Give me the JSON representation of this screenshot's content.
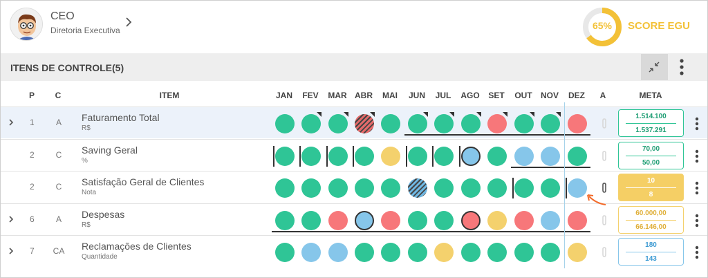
{
  "user": {
    "name": "CEO",
    "department": "Diretoria Executiva"
  },
  "score": {
    "percent": "65%",
    "label": "SCORE EGU",
    "value": 0.65,
    "color": "#f3c137"
  },
  "section": {
    "title": "ITENS DE CONTROLE(5)"
  },
  "columns": {
    "p": "P",
    "c": "C",
    "item": "ITEM",
    "a": "A",
    "meta": "META",
    "months": [
      "JAN",
      "FEV",
      "MAR",
      "ABR",
      "MAI",
      "JUN",
      "JUL",
      "AGO",
      "SET",
      "OUT",
      "NOV",
      "DEZ"
    ]
  },
  "status_colors": {
    "green": "#2fc596",
    "red": "#f7777a",
    "yellow": "#f4d16d",
    "blue": "#86c6ea"
  },
  "rows": [
    {
      "expandable": true,
      "p": "1",
      "c": "A",
      "item": "Faturamento Total",
      "unit": "R$",
      "statuses": [
        "green",
        "green",
        "green",
        "hatch-red",
        "green",
        "green",
        "green",
        "green",
        "red",
        "green",
        "green",
        "red"
      ],
      "meta_top": "1.514.100",
      "meta_bottom": "1.537.291",
      "meta_style": "green"
    },
    {
      "expandable": false,
      "p": "2",
      "c": "C",
      "item": "Saving Geral",
      "unit": "%",
      "statuses": [
        "green",
        "green",
        "green",
        "green",
        "yellow",
        "green",
        "green",
        "blue",
        "green",
        "blue",
        "blue",
        "green"
      ],
      "meta_top": "70,00",
      "meta_bottom": "50,00",
      "meta_style": "green"
    },
    {
      "expandable": false,
      "p": "2",
      "c": "C",
      "item": "Satisfação Geral de Clientes",
      "unit": "Nota",
      "statuses": [
        "green",
        "green",
        "green",
        "green",
        "green",
        "hatch-blue",
        "green",
        "green",
        "green",
        "green",
        "green",
        "blue"
      ],
      "meta_top": "10",
      "meta_bottom": "8",
      "meta_style": "yellow"
    },
    {
      "expandable": true,
      "p": "6",
      "c": "A",
      "item": "Despesas",
      "unit": "R$",
      "statuses": [
        "green",
        "green",
        "red",
        "blue",
        "red",
        "green",
        "green",
        "red",
        "yellow",
        "red",
        "blue",
        "red"
      ],
      "meta_top": "60.000,00",
      "meta_bottom": "66.146,00",
      "meta_style": "yellow-o"
    },
    {
      "expandable": true,
      "p": "7",
      "c": "CA",
      "item": "Reclamações de Clientes",
      "unit": "Quantidade",
      "statuses": [
        "green",
        "blue",
        "blue",
        "green",
        "green",
        "green",
        "yellow",
        "green",
        "green",
        "green",
        "green",
        "yellow"
      ],
      "meta_top": "180",
      "meta_bottom": "143",
      "meta_style": "blue"
    }
  ]
}
